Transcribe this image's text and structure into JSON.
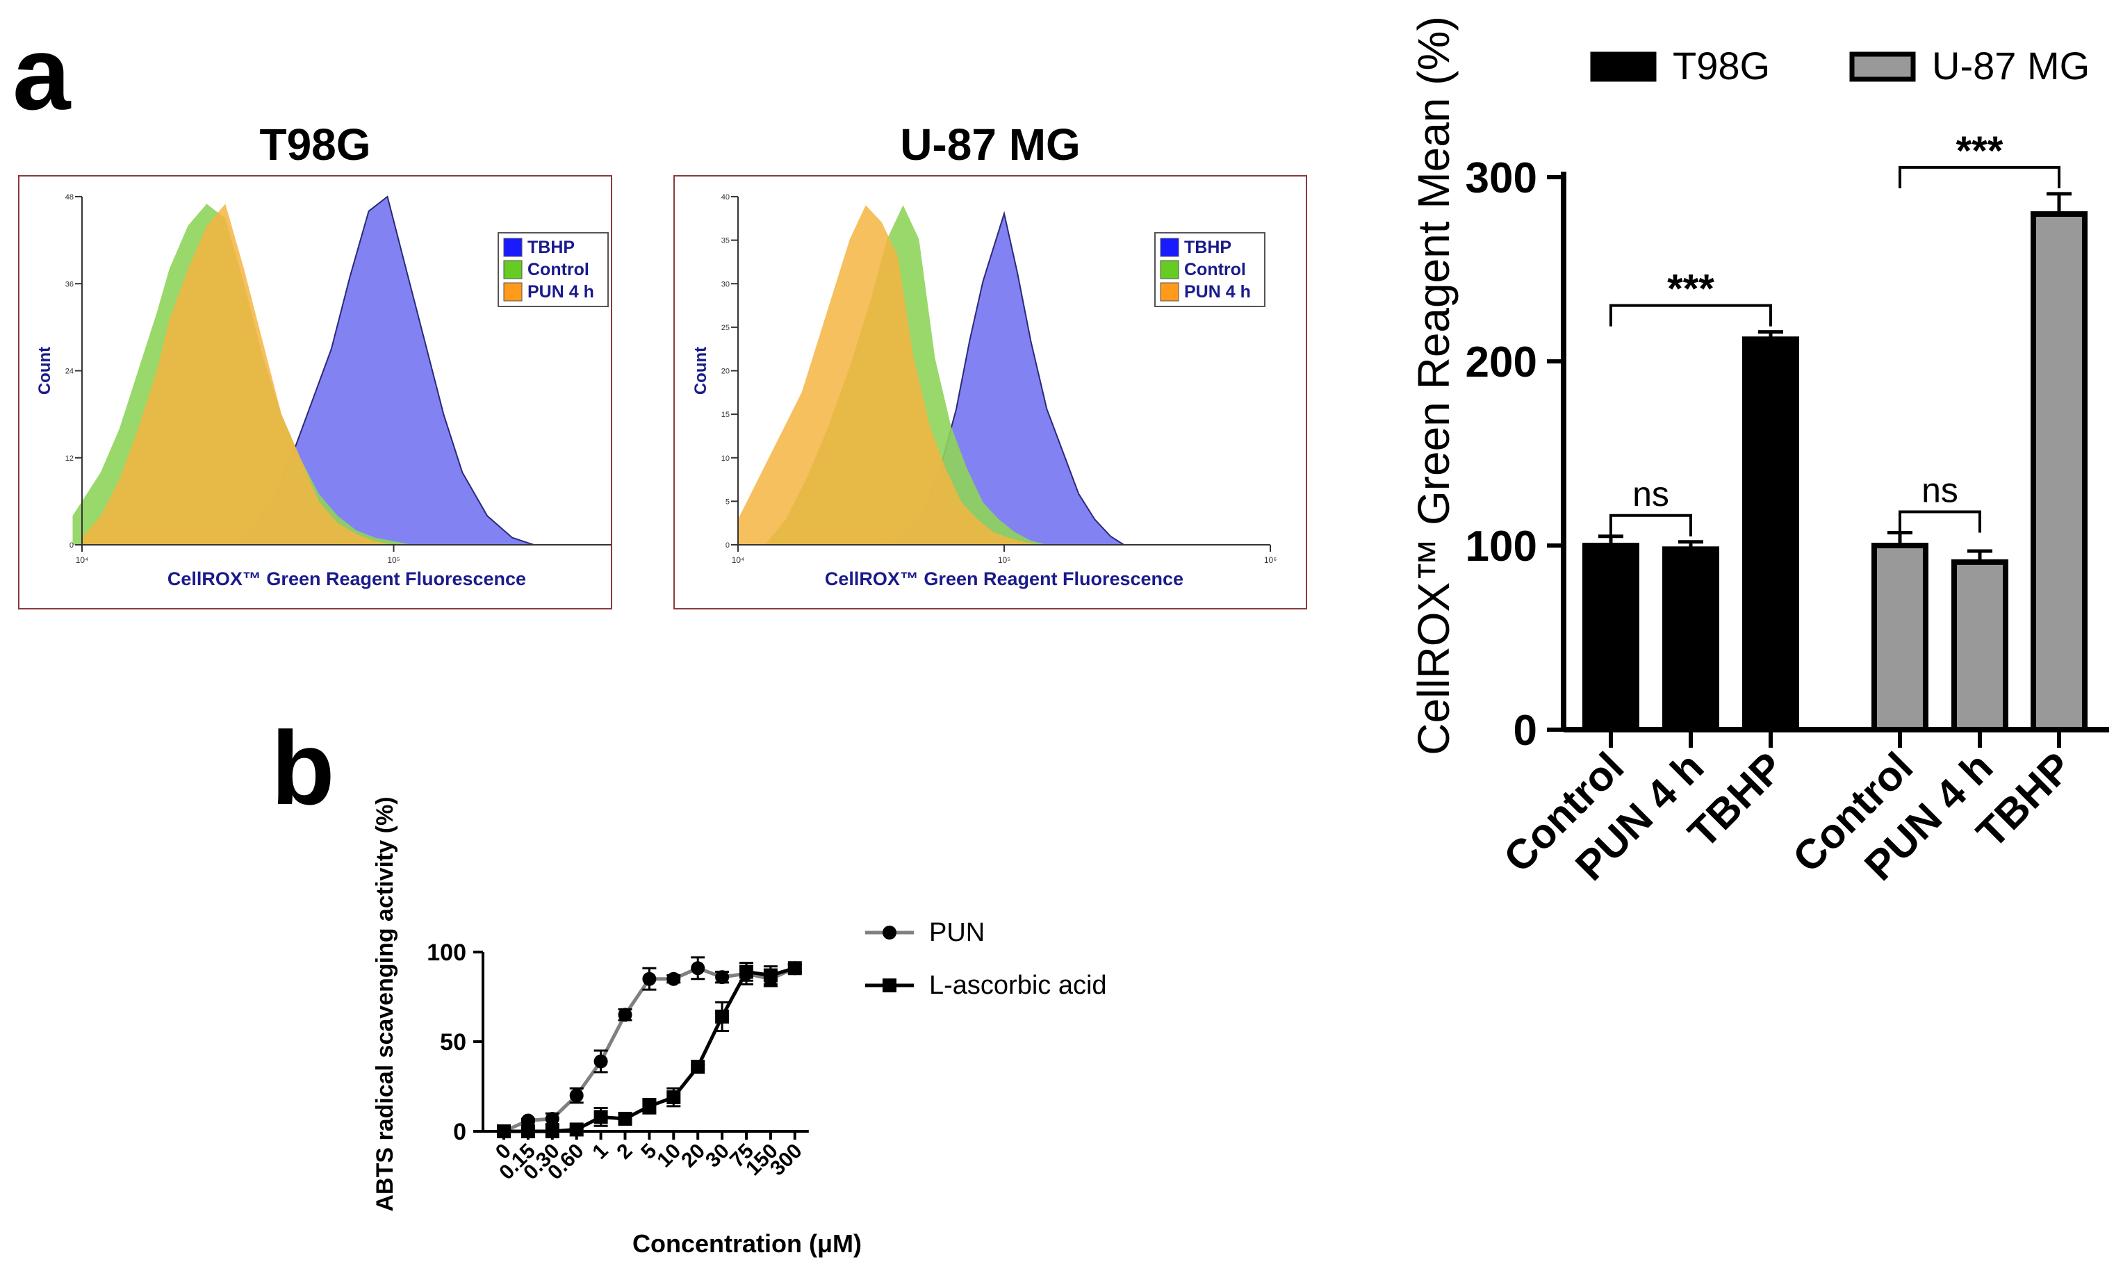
{
  "panel_labels": {
    "a": "a",
    "b": "b"
  },
  "colors": {
    "tbhp": "#7b7bf2",
    "control": "#8ed45a",
    "pun": "#f5b542",
    "overlap": "#c49a38",
    "legend_tbhp": "#1a1aff",
    "legend_control": "#66cc22",
    "legend_pun": "#ff9a1a",
    "frame": "#8b3a3a",
    "axis_text": "#1a1a8c",
    "t98g_bar": "#000000",
    "u87_bar": "#999999",
    "pun_line": "#808080",
    "asc_line": "#000000"
  },
  "chart_data": [
    {
      "id": "histogram-t98g",
      "type": "area",
      "title": "T98G",
      "xlabel": "CellROX™ Green Reagent Fluorescence",
      "ylabel": "Count",
      "xscale": "log",
      "xlim": [
        10000,
        500000
      ],
      "ylim": [
        0,
        48
      ],
      "yticks": [
        "0",
        "12",
        "24",
        "36",
        "48"
      ],
      "xticks": [
        {
          "value": 10000,
          "label": "10⁴"
        },
        {
          "value": 100000,
          "label": "10⁵"
        }
      ],
      "legend": [
        "TBHP",
        "Control",
        "PUN 4 h"
      ],
      "series": [
        {
          "name": "TBHP",
          "log_x": [
            4.48,
            4.55,
            4.62,
            4.68,
            4.74,
            4.8,
            4.86,
            4.92,
            4.98,
            5.04,
            5.1,
            5.16,
            5.22,
            5.3,
            5.38,
            5.45
          ],
          "y": [
            0,
            2,
            7,
            13,
            20,
            27,
            37,
            46,
            48,
            38,
            28,
            18,
            10,
            4,
            1,
            0
          ]
        },
        {
          "name": "Control",
          "log_x": [
            3.97,
            4.0,
            4.06,
            4.12,
            4.18,
            4.24,
            4.28,
            4.34,
            4.4,
            4.46,
            4.52,
            4.58,
            4.64,
            4.7,
            4.76,
            4.82,
            4.88,
            4.94,
            5.0,
            5.06
          ],
          "y": [
            4,
            6,
            10,
            16,
            24,
            32,
            38,
            44,
            47,
            45,
            36,
            26,
            18,
            12,
            7,
            4,
            2,
            1,
            0.5,
            0
          ]
        },
        {
          "name": "PUN 4 h",
          "log_x": [
            4.0,
            4.06,
            4.12,
            4.18,
            4.24,
            4.28,
            4.34,
            4.4,
            4.46,
            4.52,
            4.58,
            4.64,
            4.7,
            4.76,
            4.82,
            4.88,
            4.94,
            5.0
          ],
          "y": [
            1,
            4,
            9,
            16,
            24,
            31,
            38,
            44,
            47,
            38,
            28,
            18,
            12,
            6,
            3,
            1.5,
            0.5,
            0
          ]
        }
      ]
    },
    {
      "id": "histogram-u87mg",
      "type": "area",
      "title": "U-87 MG",
      "xlabel": "CellROX™ Green Reagent Fluorescence",
      "ylabel": "Count",
      "xscale": "log",
      "xlim": [
        10000,
        1000000
      ],
      "ylim": [
        0,
        41
      ],
      "yticks": [
        "0",
        "5",
        "10",
        "15",
        "20",
        "25",
        "30",
        "35",
        "40"
      ],
      "xticks": [
        {
          "value": 10000,
          "label": "10⁴"
        },
        {
          "value": 100000,
          "label": "10⁵"
        },
        {
          "value": 1000000,
          "label": "10⁶"
        }
      ],
      "legend": [
        "TBHP",
        "Control",
        "PUN 4 h"
      ],
      "series": [
        {
          "name": "TBHP",
          "log_x": [
            4.54,
            4.62,
            4.7,
            4.76,
            4.82,
            4.87,
            4.92,
            4.96,
            5.0,
            5.05,
            5.1,
            5.16,
            5.22,
            5.28,
            5.34,
            5.4,
            5.45
          ],
          "y": [
            0,
            1,
            4,
            9,
            16,
            24,
            31,
            35,
            39,
            32,
            24,
            16,
            11,
            6,
            3,
            1,
            0
          ]
        },
        {
          "name": "Control",
          "log_x": [
            4.1,
            4.18,
            4.26,
            4.34,
            4.42,
            4.5,
            4.56,
            4.62,
            4.68,
            4.74,
            4.8,
            4.86,
            4.92,
            4.98,
            5.04,
            5.1,
            5.16
          ],
          "y": [
            0,
            3,
            8,
            14,
            21,
            29,
            36,
            40,
            36,
            22,
            14,
            9,
            5,
            3,
            1.5,
            0.5,
            0
          ]
        },
        {
          "name": "PUN 4 h",
          "log_x": [
            4.0,
            4.08,
            4.16,
            4.24,
            4.3,
            4.36,
            4.42,
            4.48,
            4.54,
            4.6,
            4.66,
            4.72,
            4.78,
            4.84,
            4.9,
            4.96,
            5.02,
            5.08,
            5.14
          ],
          "y": [
            3,
            8,
            13,
            18,
            24,
            30,
            36,
            40,
            38,
            34,
            22,
            14,
            9,
            5,
            3,
            1.5,
            0.8,
            0.3,
            0
          ]
        }
      ]
    },
    {
      "id": "bar-cellrox-mean",
      "type": "bar",
      "ylabel": "CellROX™ Green Reagent Mean (%)",
      "ylim": [
        0,
        300
      ],
      "yticks": [
        0,
        100,
        200,
        300
      ],
      "legend": [
        "T98G",
        "U-87 MG"
      ],
      "groups": [
        {
          "name": "T98G",
          "categories": [
            "Control",
            "PUN 4 h",
            "TBHP"
          ],
          "values": [
            100,
            98,
            212
          ],
          "errors": [
            5,
            4,
            4
          ]
        },
        {
          "name": "U-87 MG",
          "categories": [
            "Control",
            "PUN 4 h",
            "TBHP"
          ],
          "values": [
            100,
            91,
            280
          ],
          "errors": [
            7,
            6,
            11
          ]
        }
      ],
      "annotations": [
        {
          "group": 0,
          "from": 0,
          "to": 1,
          "text": "ns"
        },
        {
          "group": 0,
          "from": 0,
          "to": 2,
          "text": "***"
        },
        {
          "group": 1,
          "from": 0,
          "to": 1,
          "text": "ns"
        },
        {
          "group": 1,
          "from": 0,
          "to": 2,
          "text": "***"
        }
      ]
    },
    {
      "id": "line-abts",
      "type": "line",
      "xlabel": "Concentration (μM)",
      "ylabel": "ABTS radical scavenging activity (%)",
      "categories": [
        "0",
        "0.15",
        "0.30",
        "0.60",
        "1",
        "2",
        "5",
        "10",
        "20",
        "30",
        "75",
        "150",
        "300"
      ],
      "ylim": [
        0,
        100
      ],
      "yticks": [
        0,
        50,
        100
      ],
      "series": [
        {
          "name": "PUN",
          "marker": "circle",
          "values": [
            0,
            6,
            7,
            20,
            39,
            65,
            85,
            85,
            91,
            86,
            88,
            85,
            91
          ],
          "errors": [
            0,
            1,
            3,
            4,
            6,
            3,
            6,
            2,
            6,
            3,
            6,
            4,
            2
          ]
        },
        {
          "name": "L-ascorbic acid",
          "marker": "square",
          "values": [
            0,
            0,
            0,
            1,
            8,
            7,
            14,
            19,
            36,
            64,
            89,
            87,
            91
          ],
          "errors": [
            0,
            0,
            0,
            1,
            5,
            3,
            4,
            5,
            1,
            8,
            5,
            5,
            2
          ]
        }
      ]
    }
  ]
}
